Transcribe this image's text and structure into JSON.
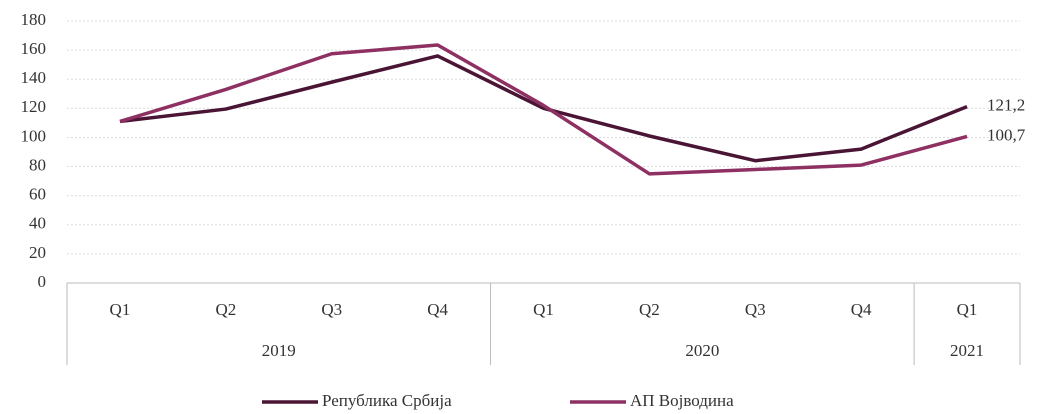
{
  "chart_data": {
    "type": "line",
    "categories": [
      "Q1",
      "Q2",
      "Q3",
      "Q4",
      "Q1",
      "Q2",
      "Q3",
      "Q4",
      "Q1"
    ],
    "groups": [
      {
        "label": "2019",
        "size": 4
      },
      {
        "label": "2020",
        "size": 4
      },
      {
        "label": "2021",
        "size": 1
      }
    ],
    "series": [
      {
        "name": "Република Србија",
        "color": "#4a1535",
        "values": [
          111,
          119.5,
          138,
          156,
          120,
          101,
          84,
          92,
          121.2
        ],
        "value_labels": [
          null,
          null,
          null,
          null,
          null,
          null,
          null,
          null,
          "121,2"
        ]
      },
      {
        "name": "АП Војводина",
        "color": "#8e3062",
        "values": [
          111,
          133,
          157.5,
          163.5,
          122,
          75,
          78,
          81,
          100.7
        ],
        "value_labels": [
          null,
          null,
          null,
          null,
          null,
          null,
          null,
          null,
          "100,7"
        ]
      }
    ],
    "ylim": [
      0,
      180
    ],
    "yticks": [
      0,
      20,
      40,
      60,
      80,
      100,
      120,
      140,
      160,
      180
    ],
    "grid": true,
    "legend": "bottom"
  }
}
